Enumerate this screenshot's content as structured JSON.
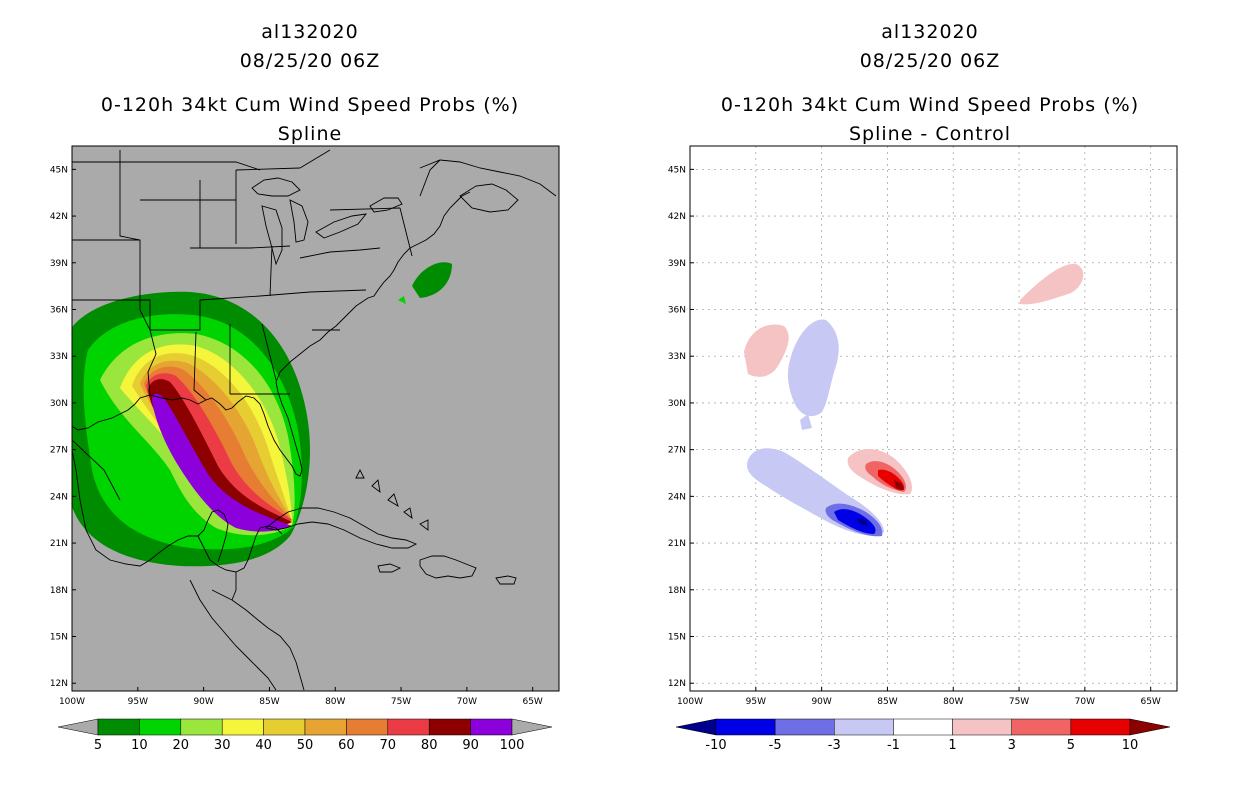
{
  "left_panel": {
    "storm_id": "al132020",
    "datetime": "08/25/20 06Z",
    "product": "0-120h 34kt Cum Wind Speed Probs (%)",
    "variant": "Spline",
    "lat_ticks": [
      "45N",
      "42N",
      "39N",
      "36N",
      "33N",
      "30N",
      "27N",
      "24N",
      "21N",
      "18N",
      "15N",
      "12N"
    ],
    "lon_ticks": [
      "100W",
      "95W",
      "90W",
      "85W",
      "80W",
      "75W",
      "70W",
      "65W"
    ],
    "colorbar": {
      "labels": [
        "5",
        "10",
        "20",
        "30",
        "40",
        "50",
        "60",
        "70",
        "80",
        "90",
        "100"
      ],
      "colors": [
        "#008c00",
        "#00d400",
        "#9be63c",
        "#f5f53c",
        "#e6cd32",
        "#e6a532",
        "#e67d32",
        "#eb3c46",
        "#8c0000",
        "#8c00dc"
      ],
      "end_low": "#aaaaaa",
      "end_high": "#aaaaaa"
    },
    "background": "#aaaaaa"
  },
  "right_panel": {
    "storm_id": "al132020",
    "datetime": "08/25/20 06Z",
    "product": "0-120h 34kt Cum Wind Speed Probs (%)",
    "variant": "Spline - Control",
    "lat_ticks": [
      "45N",
      "42N",
      "39N",
      "36N",
      "33N",
      "30N",
      "27N",
      "24N",
      "21N",
      "18N",
      "15N",
      "12N"
    ],
    "lon_ticks": [
      "100W",
      "95W",
      "90W",
      "85W",
      "80W",
      "75W",
      "70W",
      "65W"
    ],
    "colorbar": {
      "labels": [
        "-10",
        "-5",
        "-3",
        "-1",
        "1",
        "3",
        "5",
        "10"
      ],
      "colors": [
        "#0000e6",
        "#6e6ee6",
        "#c8c8f5",
        "#ffffff",
        "#f5c3c3",
        "#f06464",
        "#e60000"
      ],
      "end_low": "#00008c",
      "end_high": "#8c0000"
    },
    "background": "#ffffff"
  },
  "map_extent": {
    "lon_min": -100,
    "lon_max": -63,
    "lat_min": 11.5,
    "lat_max": 46.5
  }
}
